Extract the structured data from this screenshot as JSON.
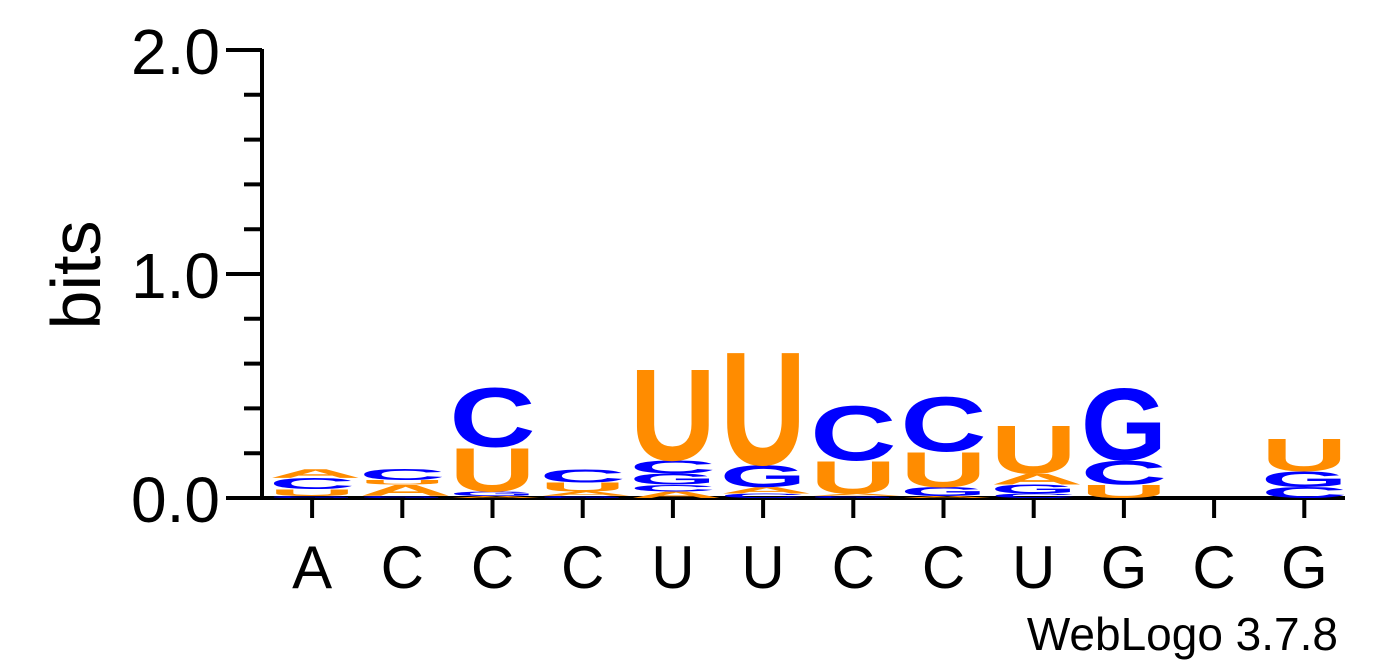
{
  "chart_data": {
    "type": "sequence-logo",
    "ylabel": "bits",
    "ylim": [
      0,
      2.0
    ],
    "y_ticks": [
      "0.0",
      "1.0",
      "2.0"
    ],
    "y_tick_values": [
      0,
      1.0,
      2.0
    ],
    "y_minor_step": 0.2,
    "positions": [
      "A",
      "C",
      "C",
      "C",
      "U",
      "U",
      "C",
      "C",
      "U",
      "G",
      "C",
      "G"
    ],
    "colors": {
      "A": "#ff8c00",
      "U": "#ff8c00",
      "C": "#0000ff",
      "G": "#0000ff"
    },
    "stacks": [
      [
        {
          "l": "G",
          "h": 0.01
        },
        {
          "l": "U",
          "h": 0.03
        },
        {
          "l": "C",
          "h": 0.05
        },
        {
          "l": "A",
          "h": 0.04
        }
      ],
      [
        {
          "l": "G",
          "h": 0.01
        },
        {
          "l": "A",
          "h": 0.05
        },
        {
          "l": "U",
          "h": 0.02
        },
        {
          "l": "C",
          "h": 0.05
        }
      ],
      [
        {
          "l": "A",
          "h": 0.01
        },
        {
          "l": "G",
          "h": 0.02
        },
        {
          "l": "U",
          "h": 0.2
        },
        {
          "l": "C",
          "h": 0.27
        }
      ],
      [
        {
          "l": "G",
          "h": 0.01
        },
        {
          "l": "A",
          "h": 0.02
        },
        {
          "l": "U",
          "h": 0.04
        },
        {
          "l": "C",
          "h": 0.06
        }
      ],
      [
        {
          "l": "A",
          "h": 0.03
        },
        {
          "l": "C",
          "h": 0.03
        },
        {
          "l": "G",
          "h": 0.05
        },
        {
          "l": "C",
          "h": 0.06
        },
        {
          "l": "U",
          "h": 0.42
        }
      ],
      [
        {
          "l": "C",
          "h": 0.02
        },
        {
          "l": "A",
          "h": 0.03
        },
        {
          "l": "G",
          "h": 0.1
        },
        {
          "l": "U",
          "h": 0.52
        }
      ],
      [
        {
          "l": "G",
          "h": 0.01
        },
        {
          "l": "A",
          "h": 0.01
        },
        {
          "l": "U",
          "h": 0.15
        },
        {
          "l": "C",
          "h": 0.25
        }
      ],
      [
        {
          "l": "A",
          "h": 0.01
        },
        {
          "l": "G",
          "h": 0.04
        },
        {
          "l": "U",
          "h": 0.16
        },
        {
          "l": "C",
          "h": 0.25
        }
      ],
      [
        {
          "l": "C",
          "h": 0.02
        },
        {
          "l": "G",
          "h": 0.04
        },
        {
          "l": "A",
          "h": 0.05
        },
        {
          "l": "U",
          "h": 0.22
        }
      ],
      [
        {
          "l": "U",
          "h": 0.06
        },
        {
          "l": "C",
          "h": 0.11
        },
        {
          "l": "G",
          "h": 0.33
        }
      ],
      [],
      [
        {
          "l": "C",
          "h": 0.05
        },
        {
          "l": "G",
          "h": 0.07
        },
        {
          "l": "U",
          "h": 0.15
        }
      ]
    ]
  },
  "footer": {
    "credit": "WebLogo 3.7.8"
  }
}
